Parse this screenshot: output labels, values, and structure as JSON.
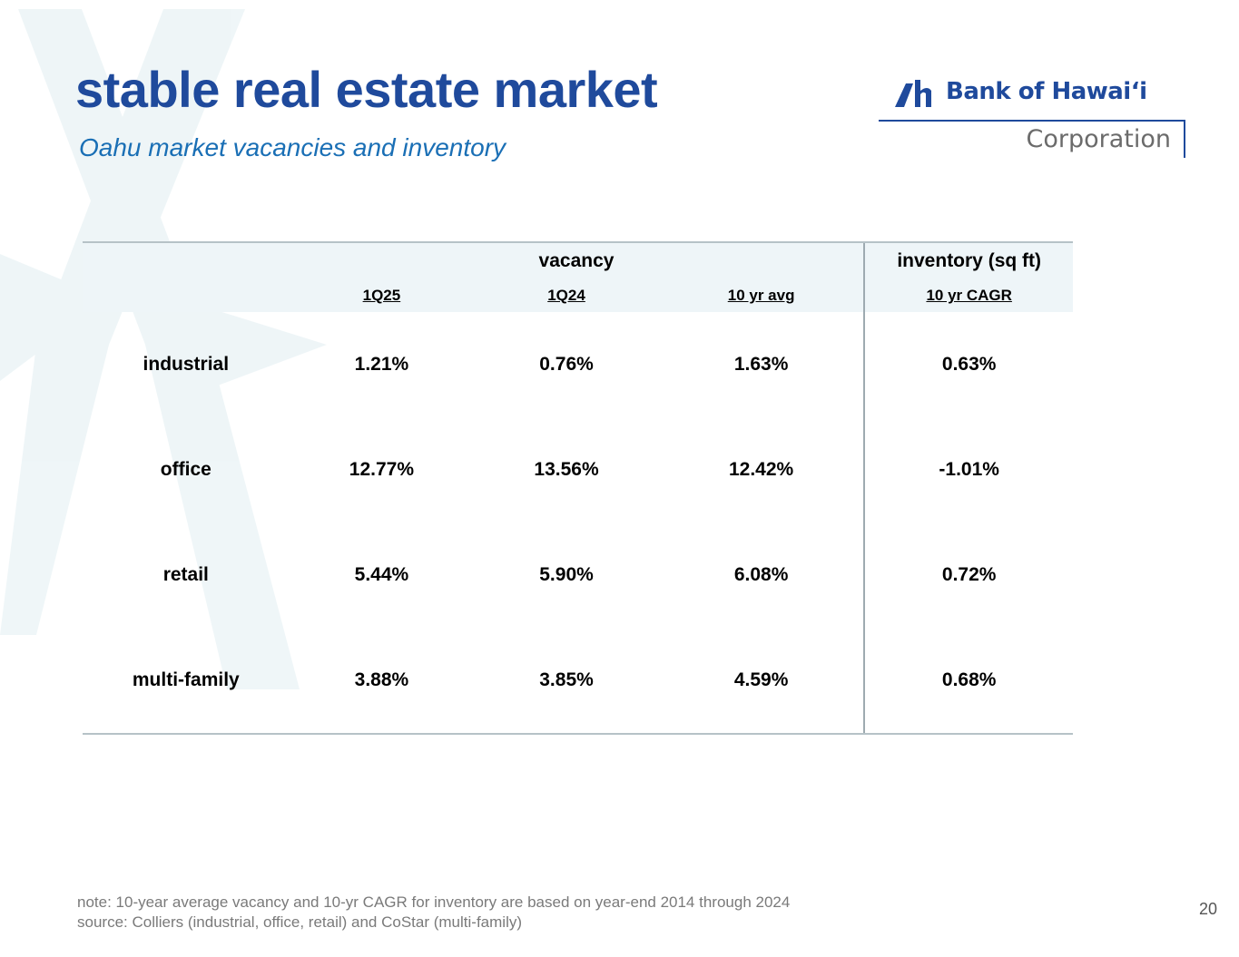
{
  "slide": {
    "title": "stable real estate market",
    "subtitle": "Oahu market vacancies and inventory",
    "page_number": "20"
  },
  "logo": {
    "name": "Bank of Hawaiʻi",
    "sub": "Corporation"
  },
  "table": {
    "group_headers": {
      "vacancy": "vacancy",
      "inventory": "inventory (sq ft)"
    },
    "columns": [
      "1Q25",
      "1Q24",
      "10 yr avg",
      "10 yr CAGR"
    ],
    "rows": [
      {
        "label": "industrial",
        "values": [
          "1.21%",
          "0.76%",
          "1.63%",
          "0.63%"
        ]
      },
      {
        "label": "office",
        "values": [
          "12.77%",
          "13.56%",
          "12.42%",
          "-1.01%"
        ]
      },
      {
        "label": "retail",
        "values": [
          "5.44%",
          "5.90%",
          "6.08%",
          "0.72%"
        ]
      },
      {
        "label": "multi-family",
        "values": [
          "3.88%",
          "3.85%",
          "4.59%",
          "0.68%"
        ]
      }
    ]
  },
  "footnotes": {
    "note": "note: 10-year average vacancy and 10-yr CAGR for inventory are based on year-end 2014 through 2024",
    "source": "source: Colliers (industrial, office, retail) and CoStar (multi-family)"
  },
  "colors": {
    "title": "#1f4a9c",
    "subtitle": "#1a6fb5",
    "header_fill": "#eef5f8"
  }
}
